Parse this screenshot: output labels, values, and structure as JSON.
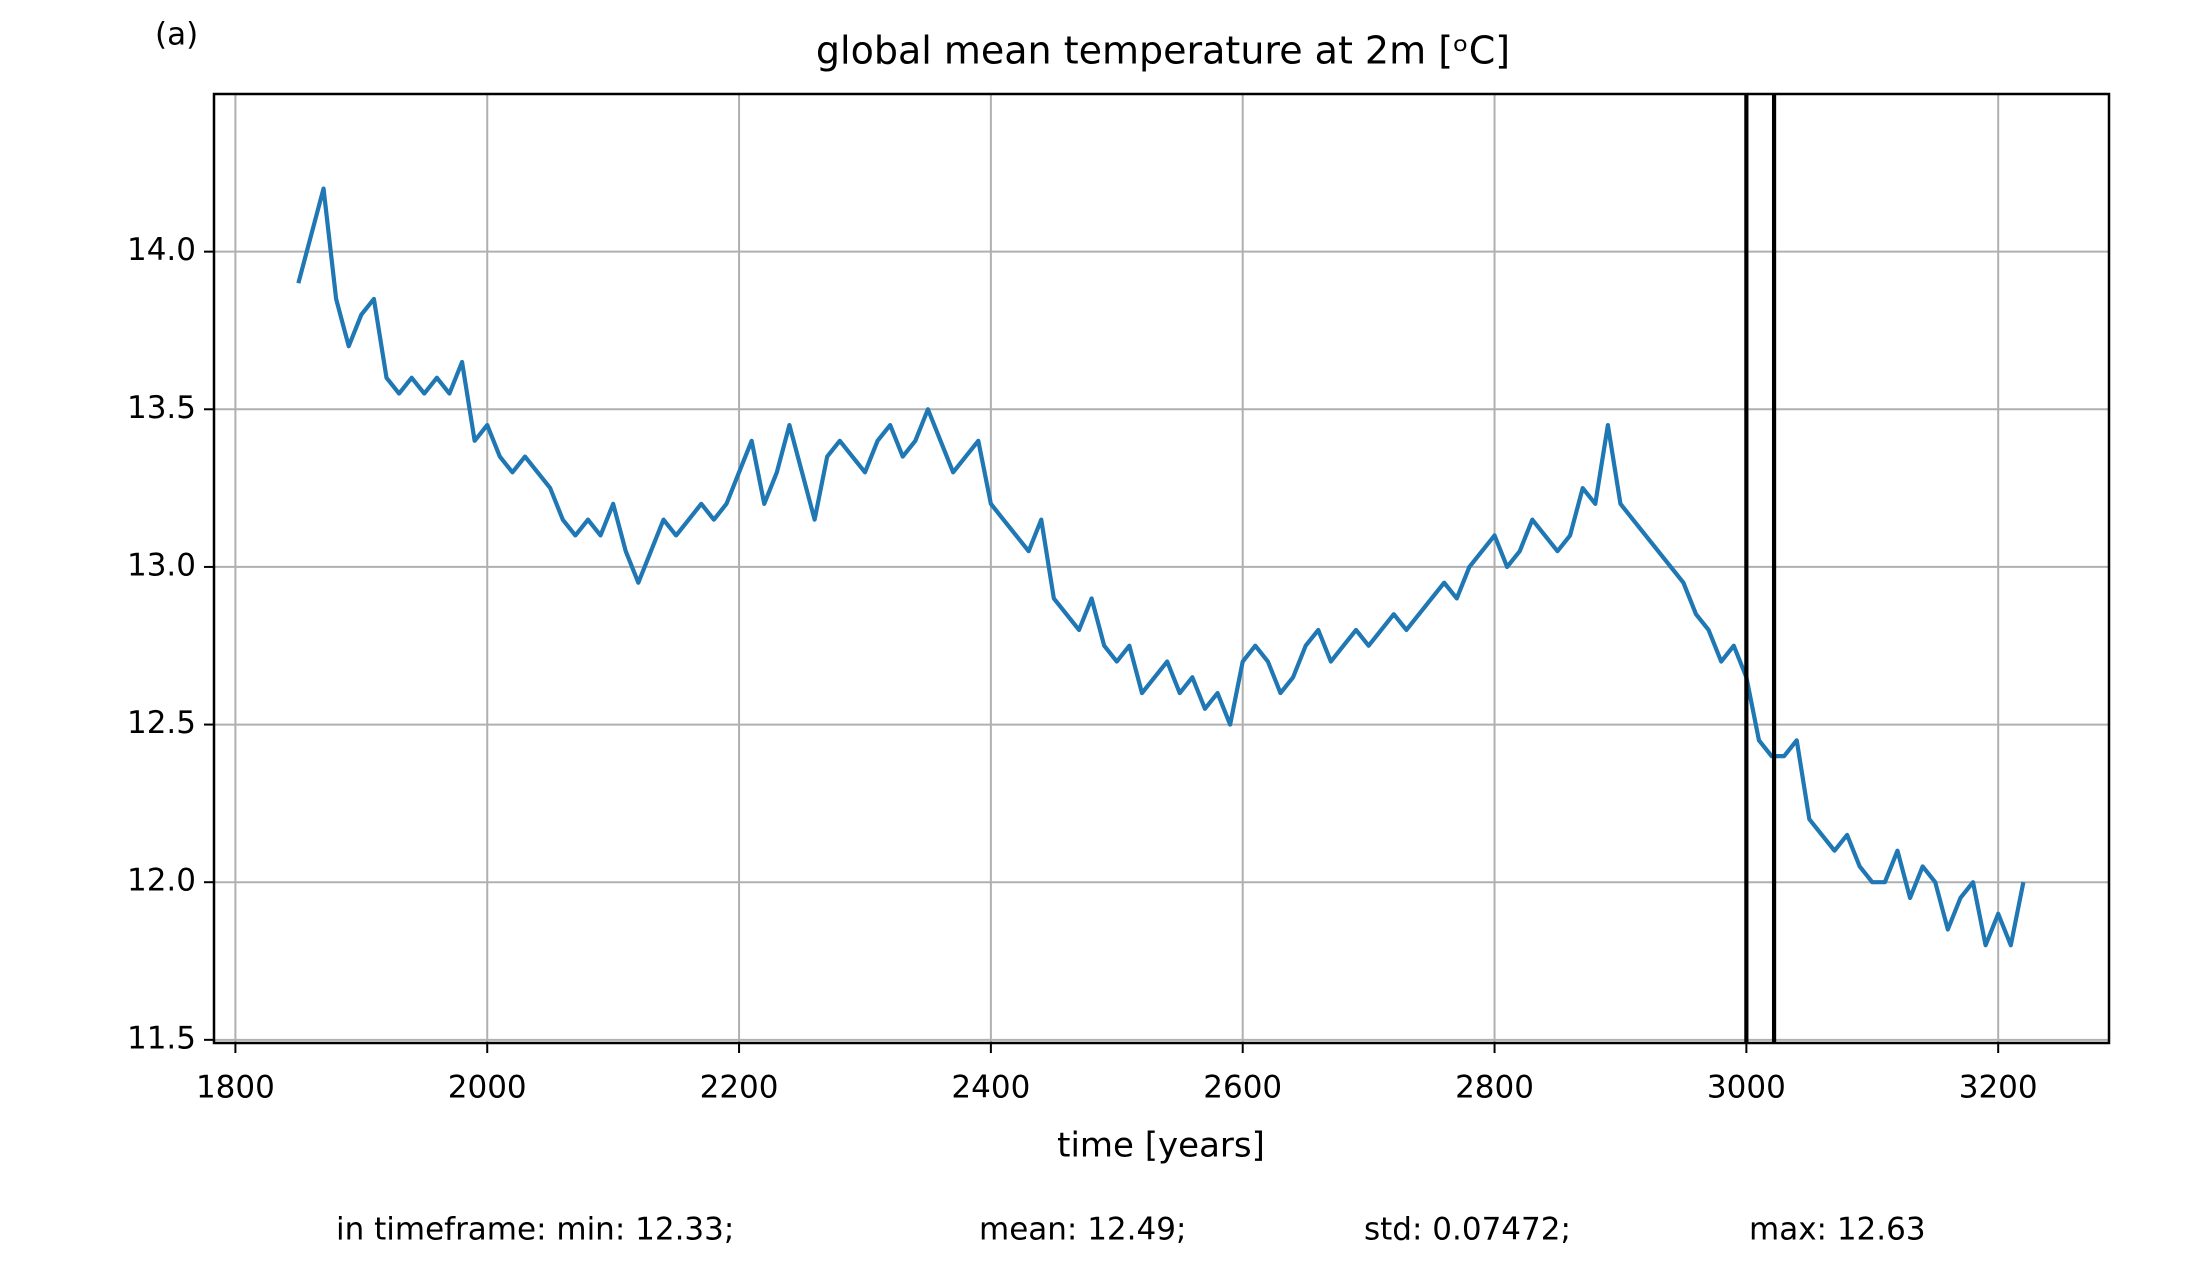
{
  "chart_data": {
    "type": "line",
    "panel_label": "(a)",
    "title": "global mean temperature at 2m [ᵒC]",
    "x_label": "time [years]",
    "x": [
      1850,
      1860,
      1870,
      1880,
      1890,
      1900,
      1910,
      1920,
      1930,
      1940,
      1950,
      1960,
      1970,
      1980,
      1990,
      2000,
      2010,
      2020,
      2030,
      2040,
      2050,
      2060,
      2070,
      2080,
      2090,
      2100,
      2110,
      2120,
      2130,
      2140,
      2150,
      2160,
      2170,
      2180,
      2190,
      2200,
      2210,
      2220,
      2230,
      2240,
      2250,
      2260,
      2270,
      2280,
      2290,
      2300,
      2310,
      2320,
      2330,
      2340,
      2350,
      2360,
      2370,
      2380,
      2390,
      2400,
      2410,
      2420,
      2430,
      2440,
      2450,
      2460,
      2470,
      2480,
      2490,
      2500,
      2510,
      2520,
      2530,
      2540,
      2550,
      2560,
      2570,
      2580,
      2590,
      2600,
      2610,
      2620,
      2630,
      2640,
      2650,
      2660,
      2670,
      2680,
      2690,
      2700,
      2710,
      2720,
      2730,
      2740,
      2750,
      2760,
      2770,
      2780,
      2790,
      2800,
      2810,
      2820,
      2830,
      2840,
      2850,
      2860,
      2870,
      2880,
      2890,
      2900,
      2910,
      2920,
      2930,
      2940,
      2950,
      2960,
      2970,
      2980,
      2990,
      3000,
      3010,
      3020,
      3030,
      3040,
      3050,
      3060,
      3070,
      3080,
      3090,
      3100,
      3110,
      3120,
      3130,
      3140,
      3150,
      3160,
      3170,
      3180,
      3190,
      3200,
      3210,
      3220
    ],
    "series": [
      {
        "color": "#1f77b4",
        "values": [
          13.9,
          14.05,
          14.2,
          13.85,
          13.7,
          13.8,
          13.85,
          13.6,
          13.55,
          13.6,
          13.55,
          13.6,
          13.55,
          13.65,
          13.4,
          13.45,
          13.35,
          13.3,
          13.35,
          13.3,
          13.25,
          13.15,
          13.1,
          13.15,
          13.1,
          13.2,
          13.05,
          12.95,
          13.05,
          13.15,
          13.1,
          13.15,
          13.2,
          13.15,
          13.2,
          13.3,
          13.4,
          13.2,
          13.3,
          13.45,
          13.3,
          13.15,
          13.35,
          13.4,
          13.35,
          13.3,
          13.4,
          13.45,
          13.35,
          13.4,
          13.5,
          13.4,
          13.3,
          13.35,
          13.4,
          13.2,
          13.15,
          13.1,
          13.05,
          13.15,
          12.9,
          12.85,
          12.8,
          12.9,
          12.75,
          12.7,
          12.75,
          12.6,
          12.65,
          12.7,
          12.6,
          12.65,
          12.55,
          12.6,
          12.5,
          12.7,
          12.75,
          12.7,
          12.6,
          12.65,
          12.75,
          12.8,
          12.7,
          12.75,
          12.8,
          12.75,
          12.8,
          12.85,
          12.8,
          12.85,
          12.9,
          12.95,
          12.9,
          13.0,
          13.05,
          13.1,
          13.0,
          13.05,
          13.15,
          13.1,
          13.05,
          13.1,
          13.25,
          13.2,
          13.45,
          13.2,
          13.15,
          13.1,
          13.05,
          13.0,
          12.95,
          12.85,
          12.8,
          12.7,
          12.75,
          12.65,
          12.45,
          12.4,
          12.4,
          12.45,
          12.2,
          12.15,
          12.1,
          12.15,
          12.05,
          12.0,
          12.0,
          12.1,
          11.95,
          12.05,
          12.0,
          11.85,
          11.95,
          12.0,
          11.8,
          11.9,
          11.8,
          12.0
        ]
      }
    ],
    "vlines": [
      3000,
      3022
    ],
    "vline_color": "#000000",
    "xlim": [
      1783,
      3288
    ],
    "ylim": [
      11.49,
      14.5
    ],
    "xticks": [
      1800,
      2000,
      2200,
      2400,
      2600,
      2800,
      3000,
      3200
    ],
    "yticks": [
      11.5,
      {
        "value": 12,
        "label": "12.0"
      },
      12.5,
      {
        "value": 13,
        "label": "13.0"
      },
      13.5,
      {
        "value": 14,
        "label": "14.0"
      }
    ],
    "grid": true,
    "stats": [
      "in timeframe: min: 12.33;",
      "mean: 12.49;",
      "std: 0.07472;",
      "max: 12.63"
    ]
  }
}
